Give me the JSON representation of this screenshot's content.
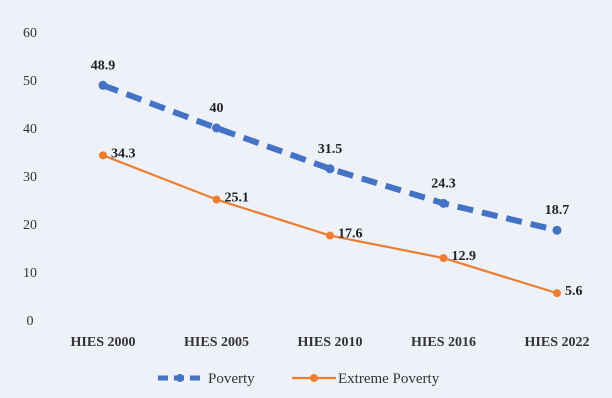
{
  "chart_data": {
    "type": "line",
    "categories": [
      "HIES 2000",
      "HIES 2005",
      "HIES 2010",
      "HIES 2016",
      "HIES 2022"
    ],
    "series": [
      {
        "name": "Poverty",
        "values": [
          48.9,
          40,
          31.5,
          24.3,
          18.7
        ],
        "labels": [
          "48.9",
          "40",
          "31.5",
          "24.3",
          "18.7"
        ],
        "color": "#4472c4",
        "style": "dashed"
      },
      {
        "name": "Extreme Poverty",
        "values": [
          34.3,
          25.1,
          17.6,
          12.9,
          5.6
        ],
        "labels": [
          "34.3",
          "25.1",
          "17.6",
          "12.9",
          "5.6"
        ],
        "color": "#ed7d31",
        "style": "solid"
      }
    ],
    "yticks": [
      "0",
      "10",
      "20",
      "30",
      "40",
      "50",
      "60"
    ],
    "ylim": [
      0,
      60
    ],
    "grid": false,
    "legend": "bottom"
  }
}
